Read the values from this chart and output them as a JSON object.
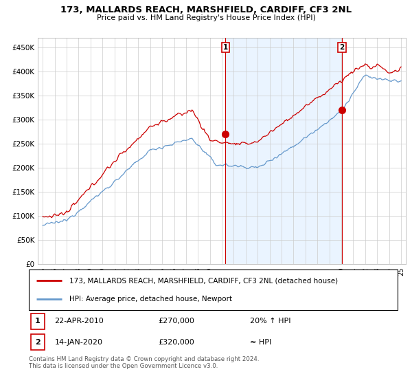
{
  "title": "173, MALLARDS REACH, MARSHFIELD, CARDIFF, CF3 2NL",
  "subtitle": "Price paid vs. HM Land Registry's House Price Index (HPI)",
  "legend_label_red": "173, MALLARDS REACH, MARSHFIELD, CARDIFF, CF3 2NL (detached house)",
  "legend_label_blue": "HPI: Average price, detached house, Newport",
  "annotation1_date": "22-APR-2010",
  "annotation1_price": "£270,000",
  "annotation1_hpi": "20% ↑ HPI",
  "annotation2_date": "14-JAN-2020",
  "annotation2_price": "£320,000",
  "annotation2_hpi": "≈ HPI",
  "footnote": "Contains HM Land Registry data © Crown copyright and database right 2024.\nThis data is licensed under the Open Government Licence v3.0.",
  "ylim": [
    0,
    470000
  ],
  "yticks": [
    0,
    50000,
    100000,
    150000,
    200000,
    250000,
    300000,
    350000,
    400000,
    450000
  ],
  "ytick_labels": [
    "£0",
    "£50K",
    "£100K",
    "£150K",
    "£200K",
    "£250K",
    "£300K",
    "£350K",
    "£400K",
    "£450K"
  ],
  "red_color": "#cc0000",
  "blue_color": "#6699cc",
  "blue_fill_color": "#ddeeff",
  "marker1_x": 2010.3,
  "marker1_y": 270000,
  "marker2_x": 2020.05,
  "marker2_y": 320000,
  "xmin": 1994.6,
  "xmax": 2025.4
}
